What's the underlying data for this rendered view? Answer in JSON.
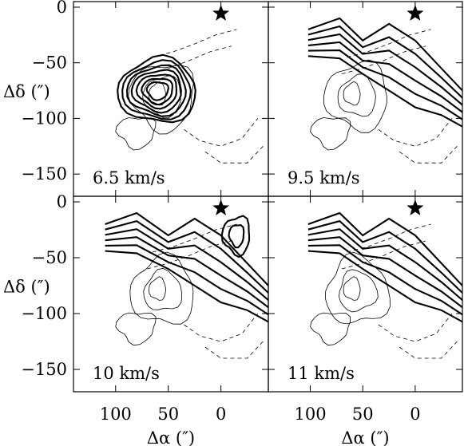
{
  "chart_data": {
    "type": "contour",
    "layout": "2x2 grid",
    "xlabel": "Δα (″)",
    "ylabel": "Δδ (″)",
    "xlim": [
      140,
      -45
    ],
    "ylim": [
      -170,
      5
    ],
    "x_ticks": [
      100,
      50,
      0
    ],
    "y_ticks": [
      0,
      -50,
      -100,
      -150
    ],
    "marker": {
      "type": "star",
      "x": 0,
      "y": 0
    },
    "panels": [
      {
        "label": "6.5 km/s",
        "position": "top-left"
      },
      {
        "label": "9.5 km/s",
        "position": "top-right"
      },
      {
        "label": "10 km/s",
        "position": "bottom-left"
      },
      {
        "label": "11 km/s",
        "position": "bottom-right"
      }
    ]
  }
}
